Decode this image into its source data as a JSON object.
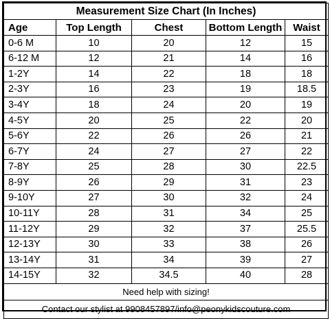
{
  "title": "Measurement Size Chart (In Inches)",
  "columns": [
    "Age",
    "Top Length",
    "Chest",
    "Bottom Length",
    "Waist"
  ],
  "rows": [
    {
      "age": "0-6 M",
      "top": "10",
      "chest": "20",
      "bottom": "12",
      "waist": "15"
    },
    {
      "age": "6-12 M",
      "top": "12",
      "chest": "21",
      "bottom": "14",
      "waist": "16"
    },
    {
      "age": "1-2Y",
      "top": "14",
      "chest": "22",
      "bottom": "18",
      "waist": "18"
    },
    {
      "age": "2-3Y",
      "top": "16",
      "chest": "23",
      "bottom": "19",
      "waist": "18.5"
    },
    {
      "age": "3-4Y",
      "top": "18",
      "chest": "24",
      "bottom": "20",
      "waist": "19"
    },
    {
      "age": "4-5Y",
      "top": "20",
      "chest": "25",
      "bottom": "22",
      "waist": "20"
    },
    {
      "age": "5-6Y",
      "top": "22",
      "chest": "26",
      "bottom": "26",
      "waist": "21"
    },
    {
      "age": "6-7Y",
      "top": "24",
      "chest": "27",
      "bottom": "27",
      "waist": "22"
    },
    {
      "age": "7-8Y",
      "top": "25",
      "chest": "28",
      "bottom": "30",
      "waist": "22.5"
    },
    {
      "age": "8-9Y",
      "top": "26",
      "chest": "29",
      "bottom": "31",
      "waist": "23"
    },
    {
      "age": "9-10Y",
      "top": "27",
      "chest": "30",
      "bottom": "32",
      "waist": "24"
    },
    {
      "age": "10-11Y",
      "top": "28",
      "chest": "31",
      "bottom": "34",
      "waist": "25"
    },
    {
      "age": "11-12Y",
      "top": "29",
      "chest": "32",
      "bottom": "37",
      "waist": "25.5"
    },
    {
      "age": "12-13Y",
      "top": "30",
      "chest": "33",
      "bottom": "38",
      "waist": "26"
    },
    {
      "age": "13-14Y",
      "top": "31",
      "chest": "34",
      "bottom": "39",
      "waist": "27"
    },
    {
      "age": "14-15Y",
      "top": "32",
      "chest": "34.5",
      "bottom": "40",
      "waist": "28"
    }
  ],
  "note": "Need help with sizing!",
  "contact": "Contact our stylist at 9908457897/info@peonykidscouture.com"
}
